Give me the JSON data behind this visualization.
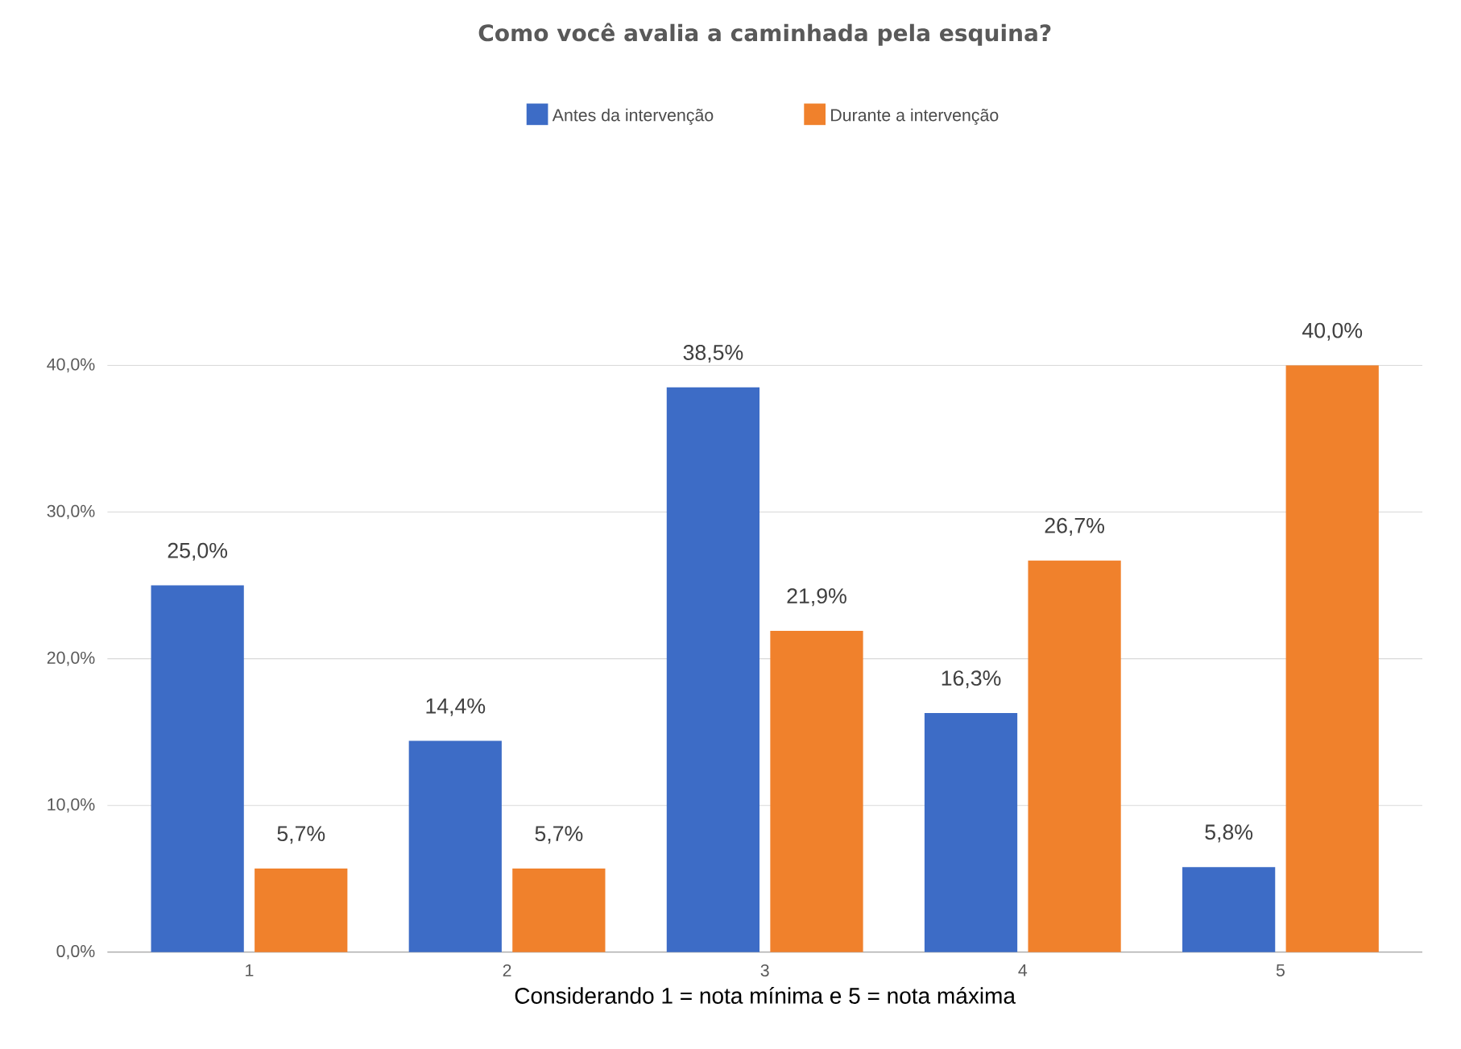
{
  "chart_data": {
    "type": "bar",
    "title": "Como você avalia a caminhada pela esquina?",
    "xlabel": "Considerando 1 = nota mínima e 5 = nota máxima",
    "categories": [
      "1",
      "2",
      "3",
      "4",
      "5"
    ],
    "series": [
      {
        "name": "Antes da intervenção",
        "color": "#3d6cc6",
        "values": [
          25.0,
          14.4,
          38.5,
          16.3,
          5.8
        ],
        "value_labels": [
          "25,0%",
          "14,4%",
          "38,5%",
          "16,3%",
          "5,8%"
        ]
      },
      {
        "name": "Durante a intervenção",
        "color": "#f0812c",
        "values": [
          5.7,
          5.7,
          21.9,
          26.7,
          40.0
        ],
        "value_labels": [
          "5,7%",
          "5,7%",
          "21,9%",
          "26,7%",
          "40,0%"
        ]
      }
    ],
    "ylim": [
      0,
      40
    ],
    "yticks": [
      {
        "value": 0,
        "label": "0,0%"
      },
      {
        "value": 10,
        "label": "10,0%"
      },
      {
        "value": 20,
        "label": "20,0%"
      },
      {
        "value": 30,
        "label": "30,0%"
      },
      {
        "value": 40,
        "label": "40,0%"
      }
    ],
    "grid": "y",
    "legend": "top"
  }
}
